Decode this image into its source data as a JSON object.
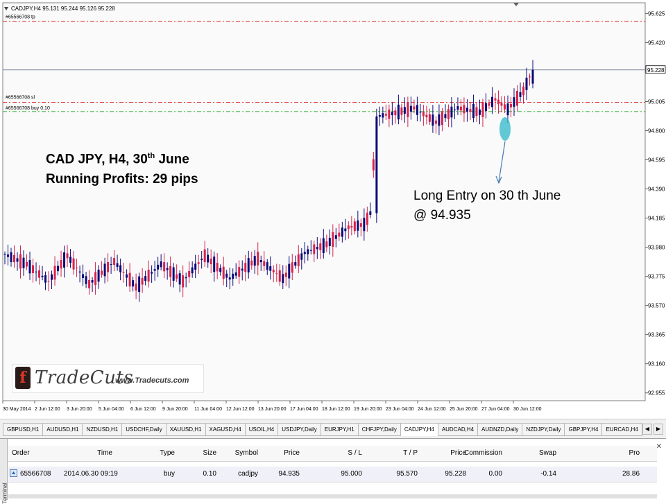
{
  "chart_title": "CADJPY,H4  95.131 95.244 95.126 95.228",
  "price_labels": [
    {
      "text": "95.625",
      "price": 95.625
    },
    {
      "text": "95.420",
      "price": 95.42
    },
    {
      "text": "95.005",
      "price": 95.005
    },
    {
      "text": "94.800",
      "price": 94.8
    },
    {
      "text": "94.595",
      "price": 94.595
    },
    {
      "text": "94.390",
      "price": 94.39
    },
    {
      "text": "94.185",
      "price": 94.185
    },
    {
      "text": "93.980",
      "price": 93.98
    },
    {
      "text": "93.775",
      "price": 93.775
    },
    {
      "text": "93.570",
      "price": 93.57
    },
    {
      "text": "93.365",
      "price": 93.365
    },
    {
      "text": "93.160",
      "price": 93.16
    },
    {
      "text": "92.955",
      "price": 92.955
    }
  ],
  "current_price": {
    "text": "95.228",
    "price": 95.228
  },
  "order_lines": [
    {
      "label": "#65566708 tp",
      "price": 95.57,
      "color": "#e02020",
      "style": "dashdot"
    },
    {
      "label": "#65566708 sl",
      "price": 95.0,
      "color": "#e02020",
      "style": "dashdot"
    },
    {
      "label": "#65566708 buy 0.10",
      "price": 94.935,
      "color": "#20b020",
      "style": "dashdot"
    }
  ],
  "time_labels": [
    "30 May 2014",
    "2 Jun 12:00",
    "3 Jun 20:00",
    "5 Jun 04:00",
    "6 Jun 12:00",
    "9 Jun 20:00",
    "11 Jun 04:00",
    "12 Jun 12:00",
    "13 Jun 20:00",
    "17 Jun 04:00",
    "18 Jun 12:00",
    "19 Jun 20:00",
    "23 Jun 04:00",
    "24 Jun 12:00",
    "25 Jun 20:00",
    "27 Jun 04:00",
    "30 Jun 12:00"
  ],
  "annotation": {
    "line1_main": "CAD JPY, H4, 30",
    "line1_sup": "th",
    "line1_end": " June",
    "line2": "Running Profits: 29 pips"
  },
  "entry_note": {
    "line1": "Long Entry on 30 th June",
    "line2": "@ 94.935"
  },
  "logo": {
    "name": "TradeCuts",
    "url": "www.Tradecuts.com"
  },
  "colors": {
    "bull": "#0a0a7a",
    "bear": "#d8234a",
    "highlight": "#2fb7c8"
  },
  "tabs": [
    "GBPUSD,H1",
    "AUDUSD,H1",
    "NZDUSD,H1",
    "USDCHF,Daily",
    "XAUUSD,H1",
    "XAGUSD,H4",
    "USOIL,H4",
    "USDJPY,Daily",
    "EURJPY,H1",
    "CHFJPY,Daily",
    "CADJPY,H4",
    "AUDCAD,H4",
    "AUDNZD,Daily",
    "NZDJPY,Daily",
    "GBPJPY,H4",
    "EURCAD,H4"
  ],
  "active_tab": "CADJPY,H4",
  "terminal": {
    "side_label": "Terminal",
    "headers": [
      "Order",
      "Time",
      "Type",
      "Size",
      "Symbol",
      "Price",
      "S / L",
      "T / P",
      "Price",
      "Commission",
      "Swap",
      "Pro"
    ],
    "row": [
      "65566708",
      "2014.06.30 09:19",
      "buy",
      "0.10",
      "cadjpy",
      "94.935",
      "95.000",
      "95.570",
      "95.228",
      "0.00",
      "-0.14",
      "28.86"
    ]
  }
}
